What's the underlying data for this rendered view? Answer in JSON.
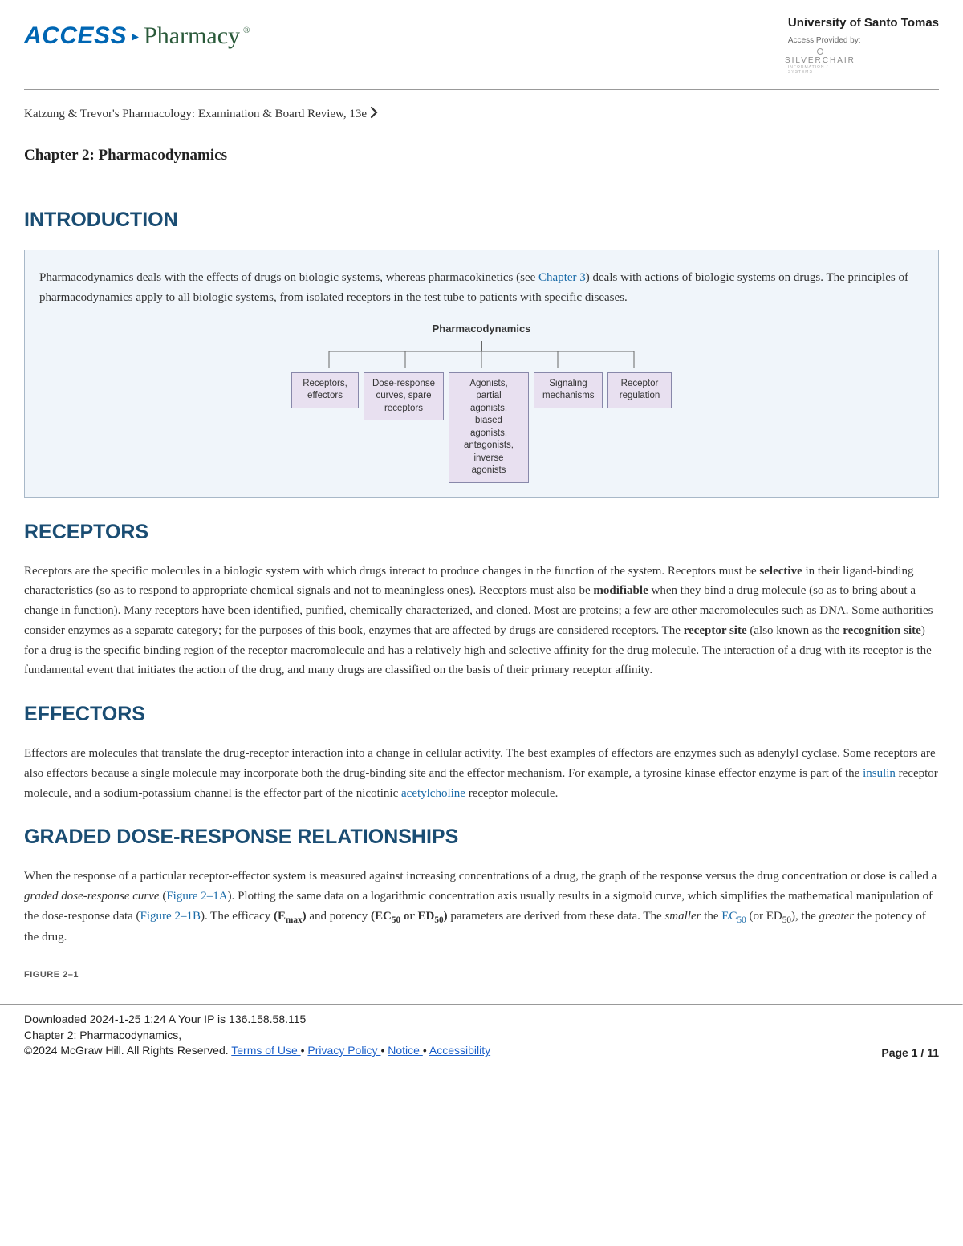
{
  "header": {
    "logo_access": "ACCESS",
    "logo_pharmacy": "Pharmacy",
    "university": "University of Santo Tomas",
    "provided_by": "Access Provided by:",
    "silverchair": "SILVERCHAIR",
    "silverchair_sub": "INFORMATION / SYSTEMS"
  },
  "breadcrumb": "Katzung & Trevor's Pharmacology: Examination & Board Review, 13e",
  "chapter_title": "Chapter 2: Pharmacodynamics",
  "sections": {
    "introduction": {
      "heading": "INTRODUCTION",
      "text_1": "Pharmacodynamics deals with the effects of drugs on biologic systems, whereas pharmacokinetics (see ",
      "link_1": "Chapter 3",
      "text_2": ") deals with actions of biologic systems on drugs. The principles of pharmacodynamics apply to all biologic systems, from isolated receptors in the test tube to patients with specific diseases.",
      "diagram": {
        "title": "Pharmacodynamics",
        "boxes": [
          "Receptors,\neffectors",
          "Dose-response\ncurves, spare\nreceptors",
          "Agonists,\npartial agonists,\nbiased agonists,\nantagonists,\ninverse agonists",
          "Signaling\nmechanisms",
          "Receptor\nregulation"
        ],
        "box_bg": "#e8e0f0",
        "box_border": "#8888aa"
      }
    },
    "receptors": {
      "heading": "RECEPTORS",
      "text_1": "Receptors are the specific molecules in a biologic system with which drugs interact to produce changes in the function of the system. Receptors must be ",
      "bold_1": "selective",
      "text_2": " in their ligand-binding characteristics (so as to respond to appropriate chemical signals and not to meaningless ones). Receptors must also be ",
      "bold_2": "modifiable",
      "text_3": " when they bind a drug molecule (so as to bring about a change in function). Many receptors have been identified, purified, chemically characterized, and cloned. Most are proteins; a few are other macromolecules such as DNA. Some authorities consider enzymes as a separate category; for the purposes of this book, enzymes that are affected by drugs are considered receptors. The ",
      "bold_3": "receptor site",
      "text_4": " (also known as the ",
      "bold_4": "recognition site",
      "text_5": ") for a drug is the specific binding region of the receptor macromolecule and has a relatively high and selective affinity for the drug molecule. The interaction of a drug with its receptor is the fundamental event that initiates the action of the drug, and many drugs are classified on the basis of their primary receptor affinity."
    },
    "effectors": {
      "heading": "EFFECTORS",
      "text_1": "Effectors are molecules that translate the drug-receptor interaction into a change in cellular activity. The best examples of effectors are enzymes such as adenylyl cyclase. Some receptors are also effectors because a single molecule may incorporate both the drug-binding site and the effector mechanism. For example, a tyrosine kinase effector enzyme is part of the ",
      "link_1": "insulin",
      "text_2": " receptor molecule, and a sodium-potassium channel is the effector part of the nicotinic ",
      "link_2": "acetylcholine",
      "text_3": " receptor molecule."
    },
    "dose_response": {
      "heading": "GRADED DOSE-RESPONSE RELATIONSHIPS",
      "text_1": "When the response of a particular receptor-effector system is measured against increasing concentrations of a drug, the graph of the response versus the drug concentration or dose is called a ",
      "italic_1": "graded dose-response curve",
      "text_2": " (",
      "link_1": "Figure 2–1A",
      "text_3": "). Plotting the same data on a logarithmic concentration axis usually results in a sigmoid curve, which simplifies the mathematical manipulation of the dose-response data (",
      "link_2": "Figure 2–1B",
      "text_4": "). The efficacy ",
      "bold_1": "(E",
      "bold_1_sub": "max",
      "bold_1_end": ")",
      "text_5": " and potency ",
      "bold_2": "(EC",
      "bold_2_sub": "50",
      "bold_2_mid": " or ED",
      "bold_2_sub2": "50",
      "bold_2_end": ")",
      "text_6": " parameters are derived from these data. The ",
      "italic_2": "smaller",
      "text_7": " the ",
      "link_3": "EC",
      "link_3_sub": "50",
      "text_8": " (or ED",
      "text_8_sub": "50",
      "text_9": "), the ",
      "italic_3": "greater",
      "text_10": " the potency of the drug.",
      "figure_label": "FIGURE 2–1"
    }
  },
  "footer": {
    "downloaded": "Downloaded 2024-1-25 1:24 A  Your IP is 136.158.58.115",
    "chapter": "Chapter 2: Pharmacodynamics,",
    "copyright": "©2024 McGraw Hill. All Rights Reserved.   ",
    "links": {
      "terms": "Terms of Use ",
      "privacy": " Privacy Policy ",
      "notice": " Notice ",
      "accessibility": " Accessibility"
    },
    "sep": "• ",
    "page_label": "Page ",
    "page_current": "1",
    "page_sep": " / ",
    "page_total": "11"
  },
  "colors": {
    "heading": "#1a4d73",
    "link": "#1a6ba8",
    "intro_bg": "#f0f5fa",
    "intro_border": "#a8b8c8"
  }
}
